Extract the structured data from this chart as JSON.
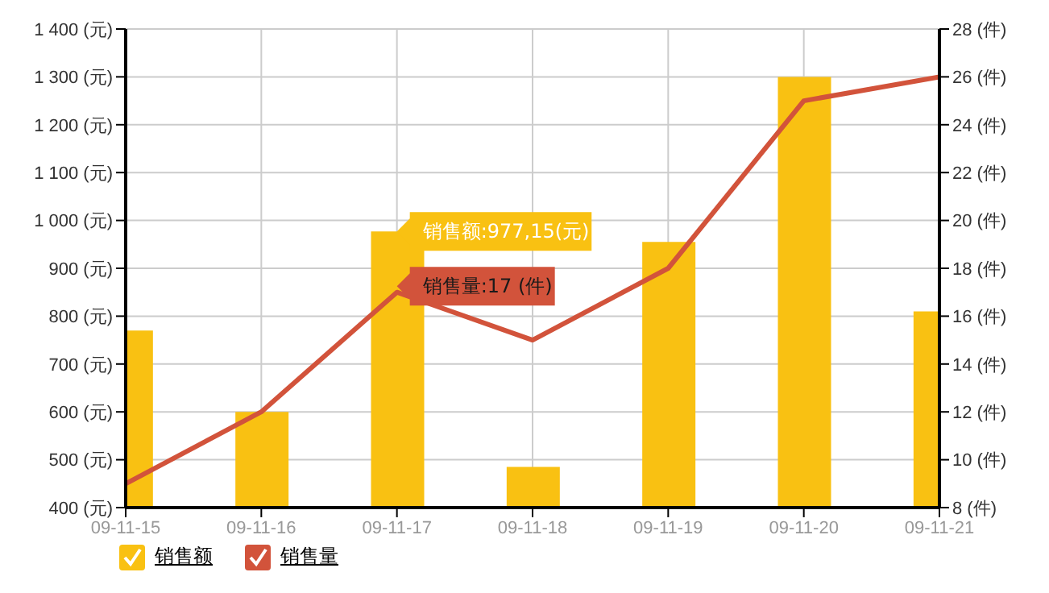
{
  "chart_data": {
    "type": "bar",
    "categories": [
      "09-11-15",
      "09-11-16",
      "09-11-17",
      "09-11-18",
      "09-11-19",
      "09-11-20",
      "09-11-21"
    ],
    "series": [
      {
        "name": "销售额",
        "color": "#f9c112",
        "values": [
          770,
          600,
          977.15,
          485,
          955,
          1300,
          810
        ]
      },
      {
        "name": "销售量",
        "type": "line",
        "axis": "y2",
        "color": "#d2533b",
        "values": [
          9,
          12,
          17,
          15,
          18,
          25,
          26
        ]
      }
    ],
    "ylim": [
      400,
      1400
    ],
    "yticks": [
      {
        "value": 400,
        "label": "400 (元)"
      },
      {
        "value": 500,
        "label": "500 (元)"
      },
      {
        "value": 600,
        "label": "600 (元)"
      },
      {
        "value": 700,
        "label": "700 (元)"
      },
      {
        "value": 800,
        "label": "800 (元)"
      },
      {
        "value": 900,
        "label": "900 (元)"
      },
      {
        "value": 1000,
        "label": "1 000 (元)"
      },
      {
        "value": 1100,
        "label": "1 100 (元)"
      },
      {
        "value": 1200,
        "label": "1 200 (元)"
      },
      {
        "value": 1300,
        "label": "1 300 (元)"
      },
      {
        "value": 1400,
        "label": "1 400 (元)"
      }
    ],
    "y2lim": [
      8,
      28
    ],
    "y2ticks": [
      {
        "value": 8,
        "label": "8 (件)"
      },
      {
        "value": 10,
        "label": "10 (件)"
      },
      {
        "value": 12,
        "label": "12 (件)"
      },
      {
        "value": 14,
        "label": "14 (件)"
      },
      {
        "value": 16,
        "label": "16 (件)"
      },
      {
        "value": 18,
        "label": "18 (件)"
      },
      {
        "value": 20,
        "label": "20 (件)"
      },
      {
        "value": 22,
        "label": "22 (件)"
      },
      {
        "value": 24,
        "label": "24 (件)"
      },
      {
        "value": 26,
        "label": "26 (件)"
      },
      {
        "value": 28,
        "label": "28 (件)"
      }
    ],
    "annotations": [
      {
        "text": "销售额:977,15(元)",
        "x": "09-11-17",
        "y": 977.15
      },
      "销售量:17 (件)"
    ],
    "grid": true,
    "legend": "bottom left",
    "marker": "none",
    "line_style": "solid"
  }
}
